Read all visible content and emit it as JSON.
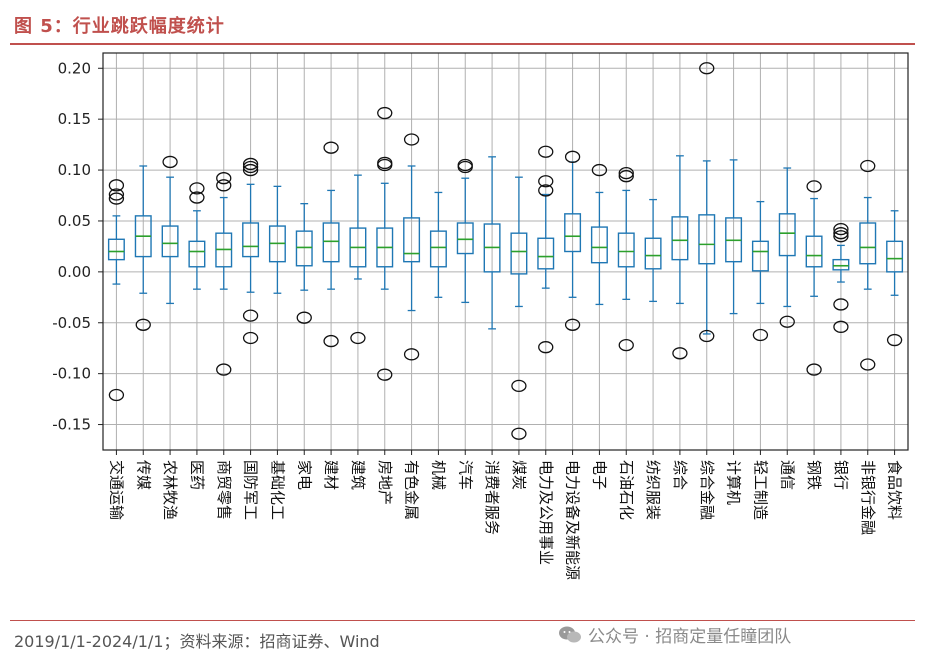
{
  "figure": {
    "title": "图 5：行业跳跃幅度统计",
    "source": "2019/1/1-2024/1/1；资料来源：招商证券、Wind",
    "watermark": "公众号 · 招商定量任瞳团队",
    "watermark_icon": "wechat-icon"
  },
  "colors": {
    "accent": "#c0504d",
    "box": "#1f77b4",
    "median": "#2ca02c",
    "grid": "#b0b0b0"
  },
  "chart_data": {
    "type": "boxplot",
    "title": "行业跳跃幅度统计",
    "xlabel": "",
    "ylabel": "",
    "ylim": [
      -0.175,
      0.215
    ],
    "yticks": [
      0.2,
      0.15,
      0.1,
      0.05,
      0.0,
      -0.05,
      -0.1,
      -0.15
    ],
    "ytick_labels": [
      "0.20",
      "0.15",
      "0.10",
      "0.05",
      "0.00",
      "-0.05",
      "-0.10",
      "-0.15"
    ],
    "grid": true,
    "categories": [
      "交通运输",
      "传媒",
      "农林牧渔",
      "医药",
      "商贸零售",
      "国防军工",
      "基础化工",
      "家电",
      "建材",
      "建筑",
      "房地产",
      "有色金属",
      "机械",
      "汽车",
      "消费者服务",
      "煤炭",
      "电力及公用事业",
      "电力设备及新能源",
      "电子",
      "石油石化",
      "纺织服装",
      "综合",
      "综合金融",
      "计算机",
      "轻工制造",
      "通信",
      "钢铁",
      "银行",
      "非银行金融",
      "食品饮料"
    ],
    "series": [
      {
        "name": "交通运输",
        "whislo": -0.012,
        "q1": 0.012,
        "med": 0.02,
        "q3": 0.032,
        "whishi": 0.055,
        "fliers": [
          0.085,
          0.076,
          0.072,
          -0.121
        ]
      },
      {
        "name": "传媒",
        "whislo": -0.021,
        "q1": 0.015,
        "med": 0.035,
        "q3": 0.055,
        "whishi": 0.104,
        "fliers": [
          -0.052
        ]
      },
      {
        "name": "农林牧渔",
        "whislo": -0.031,
        "q1": 0.015,
        "med": 0.028,
        "q3": 0.045,
        "whishi": 0.093,
        "fliers": [
          0.108
        ]
      },
      {
        "name": "医药",
        "whislo": -0.017,
        "q1": 0.005,
        "med": 0.02,
        "q3": 0.03,
        "whishi": 0.06,
        "fliers": [
          0.082,
          0.073
        ]
      },
      {
        "name": "商贸零售",
        "whislo": -0.017,
        "q1": 0.005,
        "med": 0.022,
        "q3": 0.038,
        "whishi": 0.073,
        "fliers": [
          0.092,
          0.085,
          -0.096
        ]
      },
      {
        "name": "国防军工",
        "whislo": -0.02,
        "q1": 0.015,
        "med": 0.025,
        "q3": 0.048,
        "whishi": 0.086,
        "fliers": [
          0.106,
          0.103,
          0.1,
          -0.043,
          -0.065
        ]
      },
      {
        "name": "基础化工",
        "whislo": -0.021,
        "q1": 0.01,
        "med": 0.028,
        "q3": 0.045,
        "whishi": 0.084,
        "fliers": []
      },
      {
        "name": "家电",
        "whislo": -0.018,
        "q1": 0.006,
        "med": 0.024,
        "q3": 0.04,
        "whishi": 0.067,
        "fliers": [
          -0.045
        ]
      },
      {
        "name": "建材",
        "whislo": -0.017,
        "q1": 0.01,
        "med": 0.03,
        "q3": 0.048,
        "whishi": 0.08,
        "fliers": [
          0.122,
          -0.068
        ]
      },
      {
        "name": "建筑",
        "whislo": -0.007,
        "q1": 0.005,
        "med": 0.024,
        "q3": 0.043,
        "whishi": 0.095,
        "fliers": [
          -0.065
        ]
      },
      {
        "name": "房地产",
        "whislo": -0.017,
        "q1": 0.005,
        "med": 0.024,
        "q3": 0.043,
        "whishi": 0.087,
        "fliers": [
          0.156,
          0.107,
          0.105,
          -0.101
        ]
      },
      {
        "name": "有色金属",
        "whislo": -0.038,
        "q1": 0.01,
        "med": 0.018,
        "q3": 0.053,
        "whishi": 0.104,
        "fliers": [
          0.13,
          -0.081
        ]
      },
      {
        "name": "机械",
        "whislo": -0.025,
        "q1": 0.005,
        "med": 0.024,
        "q3": 0.04,
        "whishi": 0.078,
        "fliers": []
      },
      {
        "name": "汽车",
        "whislo": -0.03,
        "q1": 0.018,
        "med": 0.032,
        "q3": 0.048,
        "whishi": 0.092,
        "fliers": [
          0.105,
          0.103
        ]
      },
      {
        "name": "消费者服务",
        "whislo": -0.056,
        "q1": 0.0,
        "med": 0.024,
        "q3": 0.047,
        "whishi": 0.113,
        "fliers": []
      },
      {
        "name": "煤炭",
        "whislo": -0.034,
        "q1": -0.002,
        "med": 0.02,
        "q3": 0.038,
        "whishi": 0.093,
        "fliers": [
          -0.112,
          -0.159
        ]
      },
      {
        "name": "电力及公用事业",
        "whislo": -0.016,
        "q1": 0.003,
        "med": 0.015,
        "q3": 0.033,
        "whishi": 0.076,
        "fliers": [
          0.118,
          0.089,
          0.08,
          -0.074
        ]
      },
      {
        "name": "电力设备及新能源",
        "whislo": -0.025,
        "q1": 0.02,
        "med": 0.035,
        "q3": 0.057,
        "whishi": 0.108,
        "fliers": [
          0.113,
          -0.052
        ]
      },
      {
        "name": "电子",
        "whislo": -0.032,
        "q1": 0.009,
        "med": 0.024,
        "q3": 0.044,
        "whishi": 0.078,
        "fliers": [
          0.1
        ]
      },
      {
        "name": "石油石化",
        "whislo": -0.027,
        "q1": 0.005,
        "med": 0.02,
        "q3": 0.038,
        "whishi": 0.08,
        "fliers": [
          0.097,
          0.094,
          -0.072
        ]
      },
      {
        "name": "纺织服装",
        "whislo": -0.029,
        "q1": 0.003,
        "med": 0.016,
        "q3": 0.033,
        "whishi": 0.071,
        "fliers": []
      },
      {
        "name": "综合",
        "whislo": -0.031,
        "q1": 0.012,
        "med": 0.031,
        "q3": 0.054,
        "whishi": 0.114,
        "fliers": [
          -0.08
        ]
      },
      {
        "name": "综合金融",
        "whislo": -0.061,
        "q1": 0.008,
        "med": 0.027,
        "q3": 0.056,
        "whishi": 0.109,
        "fliers": [
          0.2,
          -0.063
        ]
      },
      {
        "name": "计算机",
        "whislo": -0.041,
        "q1": 0.01,
        "med": 0.031,
        "q3": 0.053,
        "whishi": 0.11,
        "fliers": []
      },
      {
        "name": "轻工制造",
        "whislo": -0.031,
        "q1": 0.001,
        "med": 0.02,
        "q3": 0.03,
        "whishi": 0.069,
        "fliers": [
          -0.062
        ]
      },
      {
        "name": "通信",
        "whislo": -0.034,
        "q1": 0.016,
        "med": 0.038,
        "q3": 0.057,
        "whishi": 0.102,
        "fliers": [
          -0.049
        ]
      },
      {
        "name": "钢铁",
        "whislo": -0.024,
        "q1": 0.005,
        "med": 0.016,
        "q3": 0.035,
        "whishi": 0.072,
        "fliers": [
          0.084,
          -0.096
        ]
      },
      {
        "name": "银行",
        "whislo": -0.01,
        "q1": 0.002,
        "med": 0.006,
        "q3": 0.012,
        "whishi": 0.026,
        "fliers": [
          0.042,
          0.038,
          0.035,
          -0.032,
          -0.054
        ]
      },
      {
        "name": "非银行金融",
        "whislo": -0.017,
        "q1": 0.008,
        "med": 0.024,
        "q3": 0.048,
        "whishi": 0.073,
        "fliers": [
          0.104,
          -0.091
        ]
      },
      {
        "name": "食品饮料",
        "whislo": -0.023,
        "q1": 0.0,
        "med": 0.013,
        "q3": 0.03,
        "whishi": 0.06,
        "fliers": [
          -0.067
        ]
      }
    ]
  }
}
